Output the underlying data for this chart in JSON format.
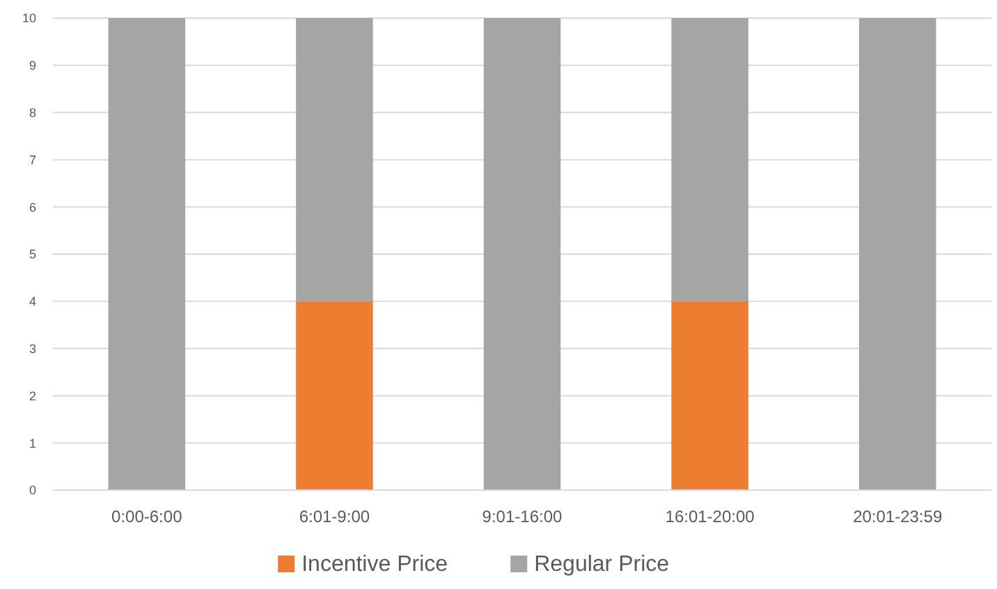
{
  "chart_data": {
    "type": "bar",
    "stacked": true,
    "categories": [
      "0:00-6:00",
      "6:01-9:00",
      "9:01-16:00",
      "16:01-20:00",
      "20:01-23:59"
    ],
    "series": [
      {
        "name": "Incentive Price",
        "color": "#ed7d31",
        "values": [
          0,
          4,
          0,
          4,
          0
        ]
      },
      {
        "name": "Regular Price",
        "color": "#a5a5a5",
        "values": [
          10,
          6,
          10,
          6,
          10
        ]
      }
    ],
    "ylim": [
      0,
      10
    ],
    "yticks": [
      0,
      1,
      2,
      3,
      4,
      5,
      6,
      7,
      8,
      9,
      10
    ],
    "grid": "y",
    "legend": "bottom"
  }
}
